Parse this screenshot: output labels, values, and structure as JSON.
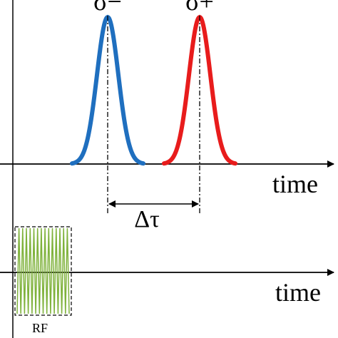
{
  "labels": {
    "pulse_left": "σ−",
    "pulse_right": "σ+",
    "time_top": "time",
    "time_bottom": "time",
    "delay": "Δτ",
    "rf": "RF"
  },
  "colors": {
    "pulse_left": "#1f6fbf",
    "pulse_right": "#e81c1c",
    "rf": "#7fb23c",
    "axis": "#000000"
  }
}
